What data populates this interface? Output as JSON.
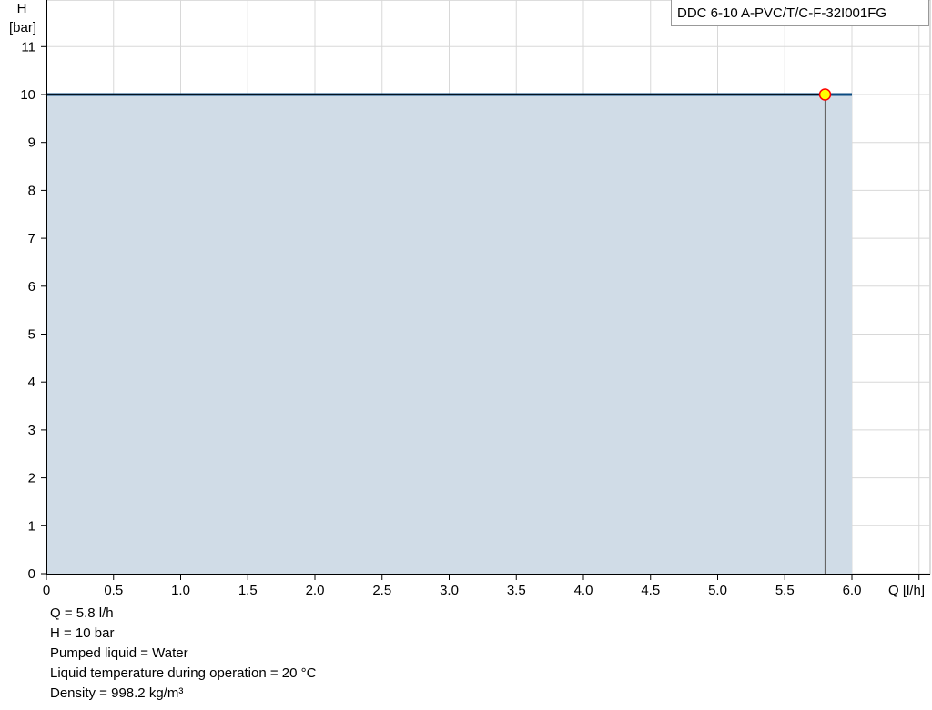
{
  "chart_data": {
    "type": "area",
    "title": "",
    "xlabel": "Q [l/h]",
    "ylabel_line1": "H",
    "ylabel_line2": "[bar]",
    "xlim": [
      0,
      6.6
    ],
    "ylim": [
      0,
      12
    ],
    "xticks": [
      "0",
      "0.5",
      "1.0",
      "1.5",
      "2.0",
      "2.5",
      "3.0",
      "3.5",
      "4.0",
      "4.5",
      "5.0",
      "5.5",
      "6.0"
    ],
    "xtick_values": [
      0,
      0.5,
      1,
      1.5,
      2,
      2.5,
      3,
      3.5,
      4,
      4.5,
      5,
      5.5,
      6,
      6.5
    ],
    "yticks": [
      0,
      1,
      2,
      3,
      4,
      5,
      6,
      7,
      8,
      9,
      10,
      11
    ],
    "grid": true,
    "legend": {
      "label": "DDC 6-10 A-PVC/T/C-F-32I001FG",
      "placement": "top-right"
    },
    "series": [
      {
        "x": [
          0,
          6.0
        ],
        "y": [
          10,
          10
        ]
      }
    ],
    "operating_point": {
      "x": 5.8,
      "y": 10
    },
    "colors": {
      "curve": "#0b4a80",
      "fill": "#d0dce7",
      "point_fill": "#ffff00",
      "point_stroke": "#ff0000",
      "grid": "#d8d8d8"
    }
  },
  "info": [
    "Q = 5.8 l/h",
    "H = 10 bar",
    "Pumped liquid = Water",
    "Liquid temperature during operation = 20 °C",
    "Density = 998.2 kg/m³"
  ]
}
